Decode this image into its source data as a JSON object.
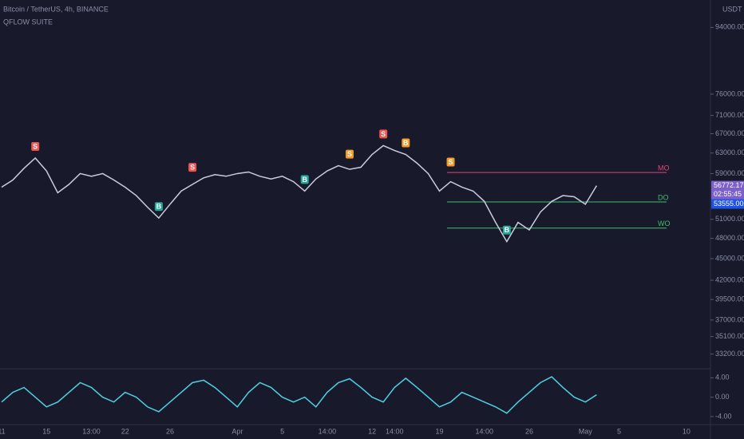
{
  "chart_data": [
    {
      "type": "line",
      "title": "Bitcoin / TetherUS, 4h, BINANCE",
      "subtitle": "QFLOW SUITE",
      "currency": "USDT",
      "log_scale": true,
      "categories": [
        "11",
        null,
        null,
        null,
        "15",
        null,
        null,
        null,
        "13:00",
        null,
        null,
        "22",
        null,
        null,
        null,
        "26",
        null,
        null,
        null,
        null,
        null,
        "Apr",
        null,
        null,
        null,
        "5",
        null,
        null,
        null,
        "14:00",
        null,
        null,
        null,
        "12",
        null,
        "14:00",
        null,
        null,
        null,
        "19",
        null,
        null,
        null,
        "14:00",
        null,
        null,
        null,
        "26",
        null,
        null,
        null,
        null,
        "May",
        null,
        null,
        "5",
        null,
        null,
        null,
        null,
        null,
        "10",
        null,
        null
      ],
      "series": [
        {
          "name": "BTCUSDT",
          "color": "#c9cbe0",
          "values": [
            56500,
            57800,
            60000,
            62000,
            59500,
            55500,
            57000,
            59000,
            58500,
            59000,
            57800,
            56500,
            55000,
            53000,
            51200,
            53500,
            55800,
            57000,
            58200,
            58800,
            58500,
            59000,
            59300,
            58500,
            58000,
            58500,
            57500,
            55800,
            58000,
            59500,
            60500,
            59800,
            60200,
            62700,
            64500,
            63500,
            62700,
            61000,
            59000,
            55800,
            57500,
            56500,
            55800,
            54000,
            50500,
            47500,
            50500,
            49300,
            52200,
            54000,
            55000,
            54800,
            53500,
            56772.17,
            null,
            null,
            null,
            null,
            null,
            null,
            null,
            null,
            null,
            null
          ]
        }
      ],
      "ylim": [
        32000,
        100000
      ],
      "yticks": [
        {
          "value": 94000,
          "label": "94000.00"
        },
        {
          "value": 76000,
          "label": "76000.00"
        },
        {
          "value": 71000,
          "label": "71000.00"
        },
        {
          "value": 67000,
          "label": "67000.00"
        },
        {
          "value": 63000,
          "label": "63000.00"
        },
        {
          "value": 59000,
          "label": "59000.00"
        },
        {
          "value": 51000,
          "label": "51000.00"
        },
        {
          "value": 48000,
          "label": "48000.00"
        },
        {
          "value": 45000,
          "label": "45000.00"
        },
        {
          "value": 42000,
          "label": "42000.00"
        },
        {
          "value": 39500,
          "label": "39500.00"
        },
        {
          "value": 37000,
          "label": "37000.00"
        },
        {
          "value": 35100,
          "label": "35100.00"
        },
        {
          "value": 33200,
          "label": "33200.00"
        }
      ],
      "levels": [
        {
          "label": "MO",
          "value": 59200,
          "color": "#e0457b"
        },
        {
          "label": "DO",
          "value": 53900,
          "color": "#3fbf6a"
        },
        {
          "label": "WO",
          "value": 49600,
          "color": "#3fbf6a"
        }
      ],
      "price_tags": [
        {
          "value": 56772.17,
          "label": "56772.17",
          "sub": "02:55:45",
          "color": "#7b61c9"
        },
        {
          "value": 53555,
          "label": "53555.00",
          "color": "#1e53e5"
        }
      ],
      "signals": [
        {
          "text": "S",
          "x": 3,
          "y": 62000,
          "color": "#ef5350"
        },
        {
          "text": "B",
          "x": 14,
          "y": 51200,
          "color": "#26a69a"
        },
        {
          "text": "S",
          "x": 17,
          "y": 58000,
          "color": "#ef5350"
        },
        {
          "text": "B",
          "x": 27,
          "y": 55800,
          "color": "#26a69a"
        },
        {
          "text": "S",
          "x": 31,
          "y": 60500,
          "color": "#f59a23"
        },
        {
          "text": "S",
          "x": 34,
          "y": 64500,
          "color": "#ef5350"
        },
        {
          "text": "B",
          "x": 36,
          "y": 62700,
          "color": "#f59a23"
        },
        {
          "text": "S",
          "x": 40,
          "y": 59000,
          "color": "#f59a23"
        },
        {
          "text": "B",
          "x": 45,
          "y": 47500,
          "color": "#26a69a"
        }
      ]
    },
    {
      "type": "line",
      "series": [
        {
          "name": "Oscillator",
          "color": "#4dd0e1",
          "values": [
            -1,
            1,
            2,
            0,
            -2,
            -1,
            1,
            3,
            2,
            0,
            -1,
            1,
            0,
            -2,
            -3,
            -1,
            1,
            3,
            3.5,
            2,
            0,
            -2,
            1,
            3,
            2,
            0,
            -1,
            0,
            -2,
            1,
            3,
            3.8,
            2,
            0,
            -1,
            2,
            3.9,
            2,
            0,
            -2,
            -1,
            1,
            0,
            -1,
            -2,
            -3.3,
            -1,
            1,
            3,
            4.2,
            2,
            0,
            -1,
            0.5,
            null,
            null,
            null,
            null,
            null,
            null,
            null,
            null,
            null,
            null
          ]
        }
      ],
      "ylim": [
        -5,
        5.2
      ],
      "yticks": [
        {
          "value": 4,
          "label": "4.00"
        },
        {
          "value": 0,
          "label": "0.00"
        },
        {
          "value": -4,
          "label": "-4.00"
        }
      ]
    }
  ]
}
